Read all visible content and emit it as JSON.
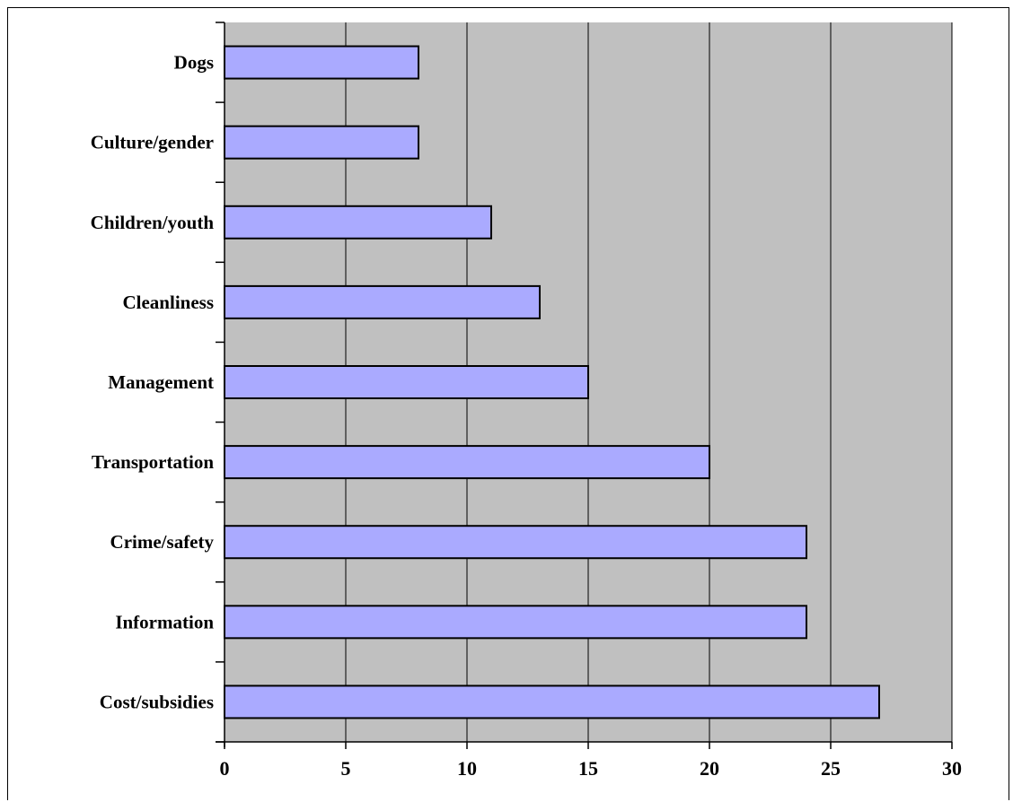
{
  "chart_data": {
    "type": "bar",
    "orientation": "horizontal",
    "categories": [
      "Dogs",
      "Culture/gender",
      "Children/youth",
      "Cleanliness",
      "Management",
      "Transportation",
      "Crime/safety",
      "Information",
      "Cost/subsidies"
    ],
    "values": [
      8,
      8,
      11,
      13,
      15,
      20,
      24,
      24,
      27
    ],
    "xlim": [
      0,
      30
    ],
    "xticks": [
      0,
      5,
      10,
      15,
      20,
      25,
      30
    ],
    "xlabel": "",
    "ylabel": "",
    "title": "",
    "grid": "vertical",
    "legend": "none",
    "colors": {
      "bar_fill": "#AAAAFF",
      "bar_stroke": "#000000",
      "plot_background": "#C0C0C0",
      "gridline": "#000000"
    }
  }
}
